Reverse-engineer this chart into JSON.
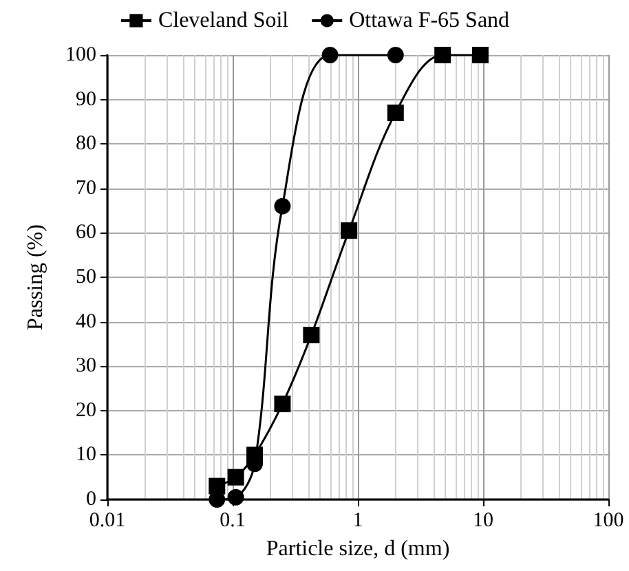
{
  "chart_data": {
    "type": "line",
    "xlabel": "Particle size, d (mm)",
    "ylabel": "Passing (%)",
    "log": "x",
    "xlim": [
      0.01,
      100
    ],
    "xticks": [
      0.01,
      0.1,
      1,
      10,
      100
    ],
    "ylim": [
      0,
      100
    ],
    "yticks": [
      0,
      10,
      20,
      30,
      40,
      50,
      60,
      70,
      80,
      90,
      100
    ],
    "grid": true,
    "legend": "top",
    "line_style": "solid",
    "series": [
      {
        "name": "Cleveland Soil",
        "color": "#000000",
        "marker": "square",
        "x": [
          0.075,
          0.106,
          0.15,
          0.25,
          0.425,
          0.85,
          2,
          4.75,
          9.5
        ],
        "values": [
          3,
          5,
          10,
          21.5,
          37,
          60.5,
          87,
          100,
          100
        ]
      },
      {
        "name": "Ottawa F-65 Sand",
        "color": "#000000",
        "marker": "circle",
        "x": [
          0.075,
          0.106,
          0.15,
          0.25,
          0.6,
          2
        ],
        "values": [
          0,
          0.5,
          8,
          66,
          100,
          100
        ]
      }
    ]
  }
}
